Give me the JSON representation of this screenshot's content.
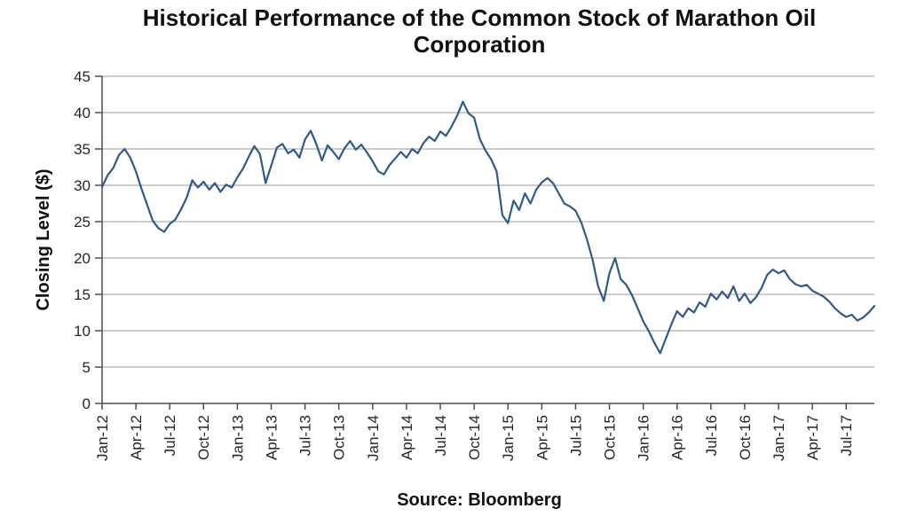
{
  "page": {
    "background": "#ffffff"
  },
  "header": {
    "title": "Historical Performance of the Common Stock of Marathon Oil Corporation"
  },
  "footer": {
    "source_caption": "Source: Bloomberg"
  },
  "chart_data": {
    "type": "line",
    "title": "Historical Performance of the Common Stock of Marathon Oil Corporation",
    "xlabel": "",
    "ylabel": "Closing Level ($)",
    "source": "Source: Bloomberg",
    "ylim": [
      0,
      45
    ],
    "ytick_step": 5,
    "ytick_labels": [
      "0",
      "5",
      "10",
      "15",
      "20",
      "25",
      "30",
      "35",
      "40",
      "45"
    ],
    "grid": "horizontal",
    "legend": "none",
    "line_color": "#2F5A8B",
    "gridline_color": "#9b9b9b",
    "axis_color": "#4d4d4d",
    "tick_text_color": "#262626",
    "x_tick_labels": [
      "Jan-12",
      "Apr-12",
      "Jul-12",
      "Oct-12",
      "Jan-13",
      "Apr-13",
      "Jul-13",
      "Oct-13",
      "Jan-14",
      "Apr-14",
      "Jul-14",
      "Oct-14",
      "Jan-15",
      "Apr-15",
      "Jul-15",
      "Oct-15",
      "Jan-16",
      "Apr-16",
      "Jul-16",
      "Oct-16",
      "Jan-17",
      "Apr-17",
      "Jul-17"
    ],
    "x_tick_indices": [
      0,
      6,
      12,
      18,
      24,
      30,
      36,
      42,
      48,
      54,
      60,
      66,
      72,
      78,
      84,
      90,
      96,
      102,
      108,
      114,
      120,
      126,
      132
    ],
    "sampling": "semi-monthly closing level, Jan-2012 through Sep-2017",
    "values": [
      29.8,
      31.4,
      32.4,
      34.2,
      35.0,
      33.8,
      31.9,
      29.5,
      27.3,
      25.1,
      24.1,
      23.6,
      24.7,
      25.3,
      26.7,
      28.3,
      30.7,
      29.7,
      30.5,
      29.4,
      30.3,
      29.1,
      30.1,
      29.7,
      31.1,
      32.3,
      33.9,
      35.4,
      34.3,
      30.3,
      32.7,
      35.2,
      35.7,
      34.4,
      34.9,
      33.8,
      36.3,
      37.5,
      35.7,
      33.4,
      35.5,
      34.6,
      33.6,
      35.1,
      36.1,
      34.9,
      35.6,
      34.5,
      33.3,
      31.9,
      31.5,
      32.8,
      33.7,
      34.6,
      33.8,
      35.0,
      34.4,
      35.8,
      36.7,
      36.1,
      37.4,
      36.8,
      38.1,
      39.6,
      41.5,
      39.9,
      39.3,
      36.4,
      34.8,
      33.6,
      31.9,
      25.9,
      24.8,
      27.9,
      26.6,
      28.9,
      27.5,
      29.4,
      30.4,
      31.0,
      30.3,
      28.9,
      27.5,
      27.1,
      26.5,
      24.9,
      22.6,
      19.8,
      16.1,
      14.1,
      17.9,
      20.0,
      17.1,
      16.3,
      14.9,
      13.1,
      11.3,
      9.9,
      8.3,
      6.9,
      8.9,
      10.9,
      12.7,
      11.9,
      13.1,
      12.5,
      13.9,
      13.3,
      15.1,
      14.3,
      15.4,
      14.5,
      16.1,
      14.1,
      15.1,
      13.8,
      14.6,
      15.9,
      17.7,
      18.4,
      17.9,
      18.3,
      17.1,
      16.4,
      16.1,
      16.3,
      15.5,
      15.1,
      14.7,
      14.0,
      13.1,
      12.4,
      11.9,
      12.2,
      11.4,
      11.8,
      12.5,
      13.4
    ]
  }
}
